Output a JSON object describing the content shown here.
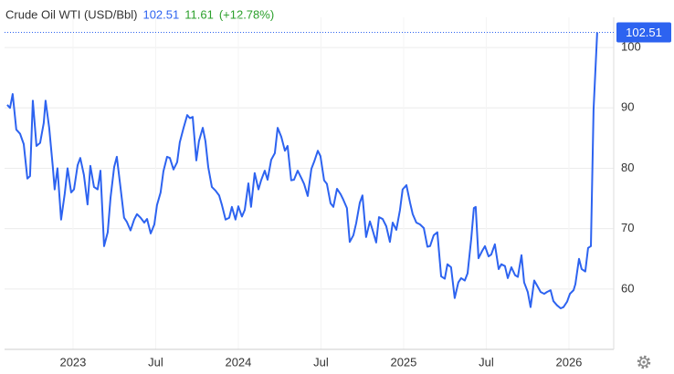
{
  "chart_data": {
    "type": "line",
    "title": "Crude Oil WTI (USD/Bbl)",
    "price": "102.51",
    "change": "11.61",
    "change_pct": "(+12.78%)",
    "color": "#2d63f0",
    "grid": true,
    "xlim": [
      2022.586,
      2026.271
    ],
    "xticks": [
      2023,
      {
        "value": 2023.5,
        "label": "Jul"
      },
      2024,
      {
        "value": 2024.5,
        "label": "Jul"
      },
      2025,
      {
        "value": 2025.5,
        "label": "Jul"
      },
      2026
    ],
    "ylim": [
      50,
      105
    ],
    "yticks": [
      60,
      70,
      80,
      90,
      100
    ],
    "x": [
      2022.602,
      2022.619,
      2022.635,
      2022.657,
      2022.68,
      2022.702,
      2022.724,
      2022.74,
      2022.757,
      2022.779,
      2022.801,
      2022.823,
      2022.834,
      2022.856,
      2022.878,
      2022.889,
      2022.906,
      2022.928,
      2022.95,
      2022.967,
      2022.989,
      2023.006,
      2023.028,
      2023.044,
      2023.066,
      2023.088,
      2023.105,
      2023.127,
      2023.149,
      2023.166,
      2023.188,
      2023.21,
      2023.227,
      2023.249,
      2023.265,
      2023.287,
      2023.309,
      2023.326,
      2023.348,
      2023.37,
      2023.387,
      2023.409,
      2023.431,
      2023.448,
      2023.47,
      2023.492,
      2023.508,
      2023.53,
      2023.547,
      2023.569,
      2023.586,
      2023.608,
      2023.63,
      2023.646,
      2023.668,
      2023.691,
      2023.707,
      2023.724,
      2023.746,
      2023.762,
      2023.785,
      2023.801,
      2023.818,
      2023.84,
      2023.862,
      2023.884,
      2023.901,
      2023.923,
      2023.945,
      2023.961,
      2023.983,
      2024.0,
      2024.022,
      2024.039,
      2024.061,
      2024.077,
      2024.099,
      2024.122,
      2024.138,
      2024.16,
      2024.177,
      2024.199,
      2024.221,
      2024.238,
      2024.26,
      2024.282,
      2024.298,
      2024.32,
      2024.337,
      2024.359,
      2024.381,
      2024.398,
      2024.42,
      2024.442,
      2024.459,
      2024.481,
      2024.497,
      2024.519,
      2024.536,
      2024.558,
      2024.575,
      2024.597,
      2024.619,
      2024.635,
      2024.657,
      2024.674,
      2024.696,
      2024.713,
      2024.735,
      2024.751,
      2024.773,
      2024.796,
      2024.812,
      2024.834,
      2024.851,
      2024.873,
      2024.895,
      2024.917,
      2024.934,
      2024.956,
      2024.978,
      2024.994,
      2025.017,
      2025.039,
      2025.055,
      2025.077,
      2025.099,
      2025.122,
      2025.144,
      2025.16,
      2025.182,
      2025.204,
      2025.227,
      2025.249,
      2025.265,
      2025.287,
      2025.309,
      2025.331,
      2025.348,
      2025.37,
      2025.387,
      2025.409,
      2025.425,
      2025.436,
      2025.453,
      2025.475,
      2025.492,
      2025.514,
      2025.53,
      2025.552,
      2025.575,
      2025.591,
      2025.613,
      2025.63,
      2025.652,
      2025.674,
      2025.691,
      2025.713,
      2025.729,
      2025.751,
      2025.768,
      2025.79,
      2025.807,
      2025.829,
      2025.851,
      2025.867,
      2025.889,
      2025.906,
      2025.928,
      2025.95,
      2025.967,
      2025.989,
      2026.006,
      2026.028,
      2026.039,
      2026.061,
      2026.077,
      2026.099,
      2026.116,
      2026.133,
      2026.149,
      2026.171
    ],
    "series": [
      {
        "name": "Crude Oil WTI",
        "color": "#2d63f0",
        "values": [
          90.5,
          90,
          92.3,
          86.4,
          85.7,
          84,
          78.3,
          78.7,
          91.2,
          83.7,
          84.2,
          87.5,
          91.2,
          86.7,
          80.2,
          76.5,
          80,
          71.5,
          75.8,
          80,
          76,
          76.5,
          80.5,
          81.7,
          78.9,
          74,
          80.4,
          76.9,
          76.5,
          79.6,
          67.1,
          69.4,
          75.1,
          80.2,
          81.9,
          76.9,
          71.8,
          71.1,
          69.7,
          71.5,
          72.4,
          71.8,
          71,
          71.6,
          69.2,
          70.7,
          73.9,
          76,
          79.5,
          81.9,
          81.7,
          79.8,
          81,
          84.3,
          86.6,
          88.8,
          88.3,
          88.5,
          81.3,
          84.5,
          86.7,
          84.5,
          80.2,
          76.9,
          76.3,
          75.5,
          73.9,
          71.5,
          71.8,
          73.6,
          71.5,
          73.7,
          72,
          73.1,
          77.5,
          73.6,
          79.2,
          76.5,
          78,
          79.6,
          78.1,
          81.4,
          82.5,
          86.7,
          85.2,
          82.9,
          83.7,
          78,
          78.1,
          79.6,
          78.4,
          77.4,
          75.4,
          79.9,
          81.1,
          82.9,
          82,
          78,
          77.4,
          74.2,
          73.6,
          76.6,
          75.7,
          74.8,
          73.4,
          67.8,
          68.9,
          70.9,
          74.3,
          75.5,
          68.6,
          71.2,
          69.8,
          67.7,
          71.9,
          71.6,
          70.4,
          67.8,
          71,
          69.8,
          73.1,
          76.5,
          77.2,
          74.3,
          72.4,
          71,
          70.7,
          70.1,
          67,
          67.1,
          68.9,
          69.4,
          62.1,
          61.7,
          64.1,
          63.6,
          58.5,
          61.1,
          61.8,
          61.4,
          62.6,
          68.3,
          73.4,
          73.6,
          65.1,
          66.3,
          67.1,
          65.4,
          65.7,
          67.4,
          63.3,
          64.1,
          63.8,
          61.8,
          63.6,
          62.3,
          62,
          65.6,
          61.1,
          59.5,
          57,
          61.4,
          60.6,
          59.5,
          59.2,
          59.5,
          59.8,
          58,
          57.3,
          56.8,
          57,
          57.9,
          59.2,
          59.8,
          60.8,
          65,
          63.3,
          62.9,
          66.8,
          67.1,
          89.7,
          102.51
        ]
      }
    ]
  }
}
